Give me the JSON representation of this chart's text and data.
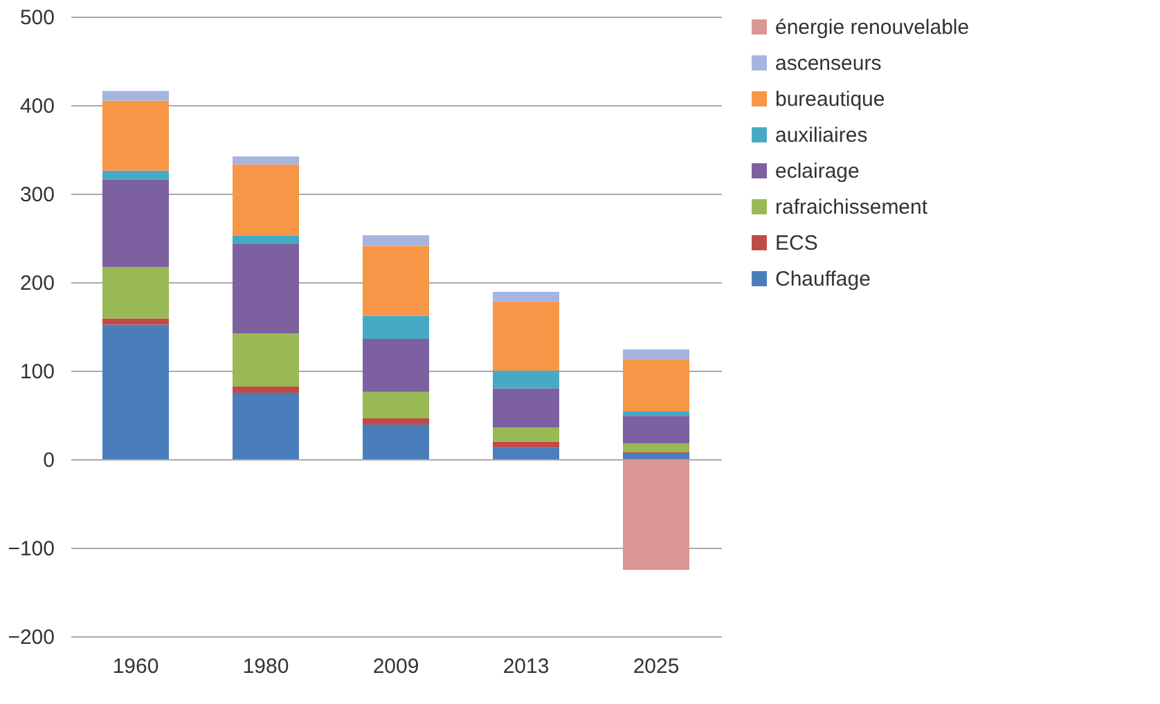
{
  "chart_data": {
    "type": "bar",
    "stacked": true,
    "categories": [
      "1960",
      "1980",
      "2009",
      "2013",
      "2025"
    ],
    "series": [
      {
        "name": "Chauffage",
        "color": "#4a7ebb",
        "values": [
          152,
          75,
          39,
          13,
          7
        ]
      },
      {
        "name": "ECS",
        "color": "#be4b48",
        "values": [
          7,
          7,
          7,
          7,
          1
        ]
      },
      {
        "name": "rafraichissement",
        "color": "#98b954",
        "values": [
          58,
          60,
          30,
          16,
          10
        ]
      },
      {
        "name": "eclairage",
        "color": "#7d60a0",
        "values": [
          99,
          101,
          60,
          44,
          31
        ]
      },
      {
        "name": "auxiliaires",
        "color": "#46aac5",
        "values": [
          10,
          10,
          26,
          20,
          5
        ]
      },
      {
        "name": "bureautique",
        "color": "#f79646",
        "values": [
          79,
          80,
          79,
          78,
          59
        ]
      },
      {
        "name": "ascenseurs",
        "color": "#a5b5e0",
        "values": [
          11,
          9,
          12,
          11,
          11
        ]
      },
      {
        "name": "énergie renouvelable",
        "color": "#d99694",
        "values": [
          null,
          null,
          null,
          null,
          -125
        ]
      }
    ],
    "ylim": [
      -200,
      500
    ],
    "yticks": [
      -200,
      -100,
      0,
      100,
      200,
      300,
      400,
      500
    ],
    "grid": "y",
    "legend": "right"
  }
}
